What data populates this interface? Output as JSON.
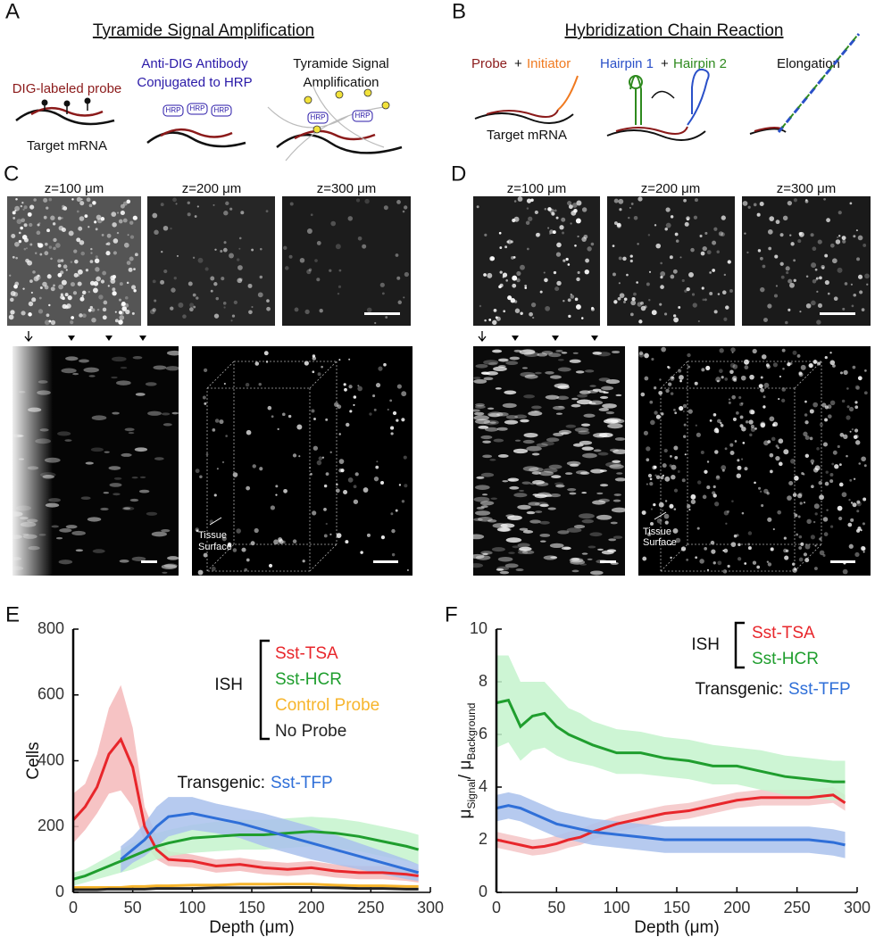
{
  "panel_letters": [
    "A",
    "B",
    "C",
    "D",
    "E",
    "F"
  ],
  "panel_a": {
    "title": "Tyramide Signal Amplification",
    "probe": "DIG-labeled probe",
    "antibody": [
      "Anti-DIG Antibody",
      "Conjugated to HRP"
    ],
    "hrp": "HRP",
    "amplification": [
      "Tyramide Signal",
      "Amplification"
    ],
    "target": "Target mRNA"
  },
  "panel_b": {
    "title": "Hybridization Chain Reaction",
    "probe": "Probe",
    "plus": "+",
    "initiator": "Initiator",
    "hairpin1": "Hairpin 1",
    "hairpin2": "Hairpin 2",
    "elongation": "Elongation",
    "target": "Target mRNA"
  },
  "panel_c": {
    "depths": [
      "z=100 μm",
      "z=200 μm",
      "z=300 μm"
    ],
    "surface": [
      "Tissue",
      "Surface"
    ]
  },
  "panel_d": {
    "depths": [
      "z=100 μm",
      "z=200 μm",
      "z=300 μm"
    ],
    "surface": [
      "Tissue",
      "Surface"
    ]
  },
  "chart_data": [
    {
      "type": "line",
      "ylabel": "Cells",
      "xlabel": "Depth (μm)",
      "ish_label": "ISH",
      "transgenic_label": "Transgenic:",
      "x": [
        0,
        10,
        20,
        30,
        40,
        50,
        60,
        70,
        80,
        100,
        120,
        140,
        160,
        180,
        200,
        220,
        240,
        260,
        280,
        290
      ],
      "xlim": [
        0,
        300
      ],
      "xticks": [
        0,
        50,
        100,
        150,
        200,
        250,
        300
      ],
      "ylim": [
        0,
        800
      ],
      "yticks": [
        0,
        200,
        400,
        600,
        800
      ],
      "series": [
        {
          "name": "Sst-TSA",
          "color": "#e8262b",
          "band_color": "#f5b8ba",
          "values": [
            220,
            260,
            320,
            420,
            465,
            380,
            200,
            130,
            100,
            95,
            80,
            85,
            75,
            70,
            75,
            65,
            60,
            60,
            55,
            50
          ],
          "lower": [
            150,
            190,
            240,
            300,
            310,
            260,
            150,
            100,
            80,
            75,
            60,
            65,
            55,
            50,
            55,
            45,
            40,
            40,
            35,
            30
          ],
          "upper": [
            300,
            330,
            420,
            560,
            630,
            500,
            260,
            170,
            125,
            115,
            100,
            105,
            95,
            90,
            95,
            85,
            80,
            80,
            75,
            70
          ]
        },
        {
          "name": "Sst-HCR",
          "color": "#1f9e2e",
          "band_color": "#c4f3cc",
          "values": [
            40,
            50,
            65,
            80,
            95,
            110,
            125,
            140,
            150,
            165,
            170,
            175,
            175,
            180,
            185,
            180,
            170,
            155,
            140,
            130
          ],
          "lower": [
            20,
            30,
            40,
            50,
            60,
            70,
            85,
            100,
            110,
            120,
            125,
            130,
            130,
            135,
            140,
            135,
            125,
            110,
            95,
            85
          ],
          "upper": [
            60,
            70,
            90,
            110,
            130,
            150,
            165,
            180,
            190,
            205,
            215,
            220,
            220,
            225,
            230,
            225,
            215,
            200,
            185,
            175
          ]
        },
        {
          "name": "Control Probe",
          "color": "#f7b52c",
          "values": [
            15,
            15,
            15,
            15,
            15,
            18,
            18,
            20,
            20,
            22,
            22,
            25,
            25,
            25,
            25,
            22,
            20,
            20,
            18,
            18
          ]
        },
        {
          "name": "No Probe",
          "color": "#222222",
          "values": [
            8,
            8,
            8,
            10,
            10,
            10,
            10,
            12,
            12,
            12,
            14,
            14,
            14,
            15,
            15,
            14,
            12,
            12,
            10,
            10
          ]
        },
        {
          "name": "Sst-TFP",
          "color": "#2f6fd8",
          "band_color": "#a9c1ec",
          "values": [
            null,
            null,
            null,
            null,
            100,
            130,
            160,
            200,
            230,
            240,
            225,
            210,
            190,
            170,
            150,
            130,
            110,
            90,
            70,
            60
          ],
          "lower": [
            null,
            null,
            null,
            null,
            60,
            90,
            110,
            140,
            170,
            190,
            180,
            165,
            140,
            120,
            100,
            85,
            70,
            55,
            40,
            35
          ],
          "upper": [
            null,
            null,
            null,
            null,
            140,
            170,
            210,
            260,
            290,
            290,
            270,
            255,
            240,
            220,
            200,
            175,
            150,
            125,
            100,
            85
          ]
        }
      ]
    },
    {
      "type": "line",
      "ylabel_parts": [
        "μ",
        "Signal",
        "/ μ",
        "Background"
      ],
      "xlabel": "Depth (μm)",
      "ish_label": "ISH",
      "transgenic_label": "Transgenic:",
      "x": [
        0,
        10,
        20,
        30,
        40,
        50,
        60,
        70,
        80,
        100,
        120,
        140,
        160,
        180,
        200,
        220,
        240,
        260,
        280,
        290
      ],
      "xlim": [
        0,
        300
      ],
      "xticks": [
        0,
        50,
        100,
        150,
        200,
        250,
        300
      ],
      "ylim": [
        0,
        10
      ],
      "yticks": [
        0,
        2,
        4,
        6,
        8,
        10
      ],
      "series": [
        {
          "name": "Sst-TSA",
          "color": "#e8262b",
          "band_color": "#f5c4c6",
          "values": [
            2.0,
            1.9,
            1.8,
            1.7,
            1.75,
            1.85,
            2.0,
            2.1,
            2.3,
            2.6,
            2.8,
            3.0,
            3.1,
            3.3,
            3.5,
            3.6,
            3.6,
            3.6,
            3.7,
            3.4
          ],
          "lower": [
            1.7,
            1.6,
            1.5,
            1.4,
            1.45,
            1.55,
            1.7,
            1.8,
            2.0,
            2.3,
            2.5,
            2.7,
            2.8,
            3.0,
            3.2,
            3.3,
            3.3,
            3.3,
            3.4,
            3.1
          ],
          "upper": [
            2.3,
            2.2,
            2.1,
            2.0,
            2.05,
            2.15,
            2.3,
            2.4,
            2.6,
            2.9,
            3.1,
            3.3,
            3.4,
            3.6,
            3.8,
            3.9,
            3.9,
            3.9,
            4.0,
            3.7
          ]
        },
        {
          "name": "Sst-HCR",
          "color": "#1f9e2e",
          "band_color": "#c4f3cc",
          "values": [
            7.2,
            7.3,
            6.3,
            6.7,
            6.8,
            6.3,
            6.0,
            5.8,
            5.6,
            5.3,
            5.3,
            5.1,
            5.0,
            4.8,
            4.8,
            4.6,
            4.4,
            4.3,
            4.2,
            4.2
          ],
          "lower": [
            5.5,
            5.7,
            5.0,
            5.4,
            5.5,
            5.2,
            5.0,
            4.9,
            4.8,
            4.5,
            4.5,
            4.4,
            4.3,
            4.1,
            4.1,
            3.9,
            3.7,
            3.6,
            3.5,
            3.5
          ],
          "upper": [
            9.0,
            9.0,
            8.0,
            8.0,
            8.0,
            7.5,
            7.0,
            6.8,
            6.5,
            6.2,
            6.1,
            5.9,
            5.8,
            5.6,
            5.5,
            5.4,
            5.2,
            5.1,
            5.0,
            5.0
          ]
        },
        {
          "name": "Sst-TFP",
          "color": "#2f6fd8",
          "band_color": "#a9c1ec",
          "values": [
            3.2,
            3.3,
            3.2,
            3.0,
            2.8,
            2.6,
            2.5,
            2.4,
            2.3,
            2.2,
            2.1,
            2.0,
            2.0,
            2.0,
            2.0,
            2.0,
            2.0,
            2.0,
            1.9,
            1.8
          ],
          "lower": [
            2.7,
            2.8,
            2.7,
            2.5,
            2.3,
            2.1,
            2.0,
            1.9,
            1.8,
            1.7,
            1.6,
            1.5,
            1.5,
            1.5,
            1.5,
            1.5,
            1.5,
            1.5,
            1.4,
            1.3
          ],
          "upper": [
            3.7,
            3.8,
            3.7,
            3.5,
            3.3,
            3.1,
            3.0,
            2.9,
            2.8,
            2.7,
            2.6,
            2.5,
            2.5,
            2.5,
            2.5,
            2.5,
            2.5,
            2.5,
            2.4,
            2.3
          ]
        }
      ]
    }
  ]
}
